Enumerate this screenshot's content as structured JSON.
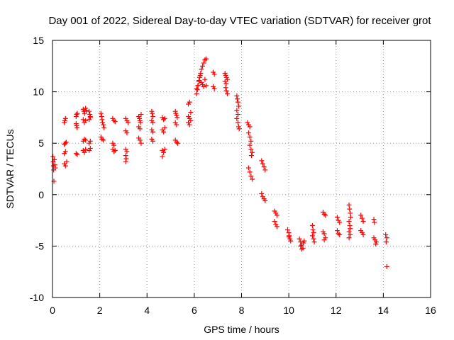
{
  "chart_data": {
    "type": "scatter",
    "title": "Day 001 of 2022, Sidereal Day-to-day VTEC variation (SDTVAR) for receiver grot",
    "xlabel": "GPS time / hours",
    "ylabel": "SDTVAR / TECUs",
    "xlim": [
      0,
      16
    ],
    "ylim": [
      -10,
      15
    ],
    "xticks": [
      "0",
      "2",
      "4",
      "6",
      "8",
      "10",
      "12",
      "14",
      "16"
    ],
    "yticks": [
      "15",
      "10",
      "5",
      "0",
      "-5",
      "-10"
    ],
    "grid": true,
    "marker": "plus",
    "color": "#ff0000",
    "series": [
      {
        "name": "SDTVAR",
        "points": [
          [
            0.02,
            3.7
          ],
          [
            0.03,
            3.2
          ],
          [
            0.04,
            2.8
          ],
          [
            0.05,
            2.4
          ],
          [
            0.06,
            1.3
          ],
          [
            0.08,
            3.4
          ],
          [
            0.1,
            2.9
          ],
          [
            0.12,
            2.6
          ],
          [
            0.5,
            7.0
          ],
          [
            0.52,
            7.2
          ],
          [
            0.55,
            7.4
          ],
          [
            0.5,
            4.9
          ],
          [
            0.54,
            5.0
          ],
          [
            0.58,
            5.1
          ],
          [
            0.5,
            4.0
          ],
          [
            0.55,
            4.2
          ],
          [
            0.5,
            3.0
          ],
          [
            0.55,
            2.8
          ],
          [
            0.6,
            3.2
          ],
          [
            1.0,
            7.6
          ],
          [
            1.02,
            7.8
          ],
          [
            1.05,
            7.9
          ],
          [
            1.0,
            6.9
          ],
          [
            1.02,
            6.7
          ],
          [
            1.04,
            6.5
          ],
          [
            1.0,
            4.0
          ],
          [
            1.05,
            3.9
          ],
          [
            1.3,
            8.3
          ],
          [
            1.33,
            8.1
          ],
          [
            1.36,
            7.9
          ],
          [
            1.4,
            8.4
          ],
          [
            1.43,
            8.2
          ],
          [
            1.3,
            7.3
          ],
          [
            1.35,
            7.0
          ],
          [
            1.4,
            7.2
          ],
          [
            1.3,
            5.2
          ],
          [
            1.35,
            5.4
          ],
          [
            1.4,
            5.3
          ],
          [
            1.3,
            4.3
          ],
          [
            1.35,
            4.1
          ],
          [
            1.4,
            4.4
          ],
          [
            1.55,
            8.1
          ],
          [
            1.58,
            7.8
          ],
          [
            1.6,
            7.6
          ],
          [
            1.55,
            7.3
          ],
          [
            1.6,
            7.5
          ],
          [
            1.55,
            5.0
          ],
          [
            1.6,
            5.2
          ],
          [
            1.55,
            4.3
          ],
          [
            1.6,
            4.5
          ],
          [
            2.05,
            7.9
          ],
          [
            2.08,
            7.6
          ],
          [
            2.1,
            7.3
          ],
          [
            2.12,
            7.0
          ],
          [
            2.15,
            6.8
          ],
          [
            2.18,
            6.5
          ],
          [
            2.05,
            5.6
          ],
          [
            2.1,
            5.4
          ],
          [
            2.15,
            5.3
          ],
          [
            2.55,
            7.4
          ],
          [
            2.6,
            7.2
          ],
          [
            2.65,
            7.1
          ],
          [
            2.55,
            5.0
          ],
          [
            2.6,
            4.8
          ],
          [
            2.55,
            4.4
          ],
          [
            2.6,
            4.2
          ],
          [
            2.65,
            4.3
          ],
          [
            3.1,
            7.4
          ],
          [
            3.15,
            7.2
          ],
          [
            3.2,
            7.0
          ],
          [
            3.1,
            6.2
          ],
          [
            3.15,
            6.0
          ],
          [
            3.1,
            4.4
          ],
          [
            3.15,
            4.2
          ],
          [
            3.1,
            3.8
          ],
          [
            3.12,
            3.5
          ],
          [
            3.1,
            3.2
          ],
          [
            3.65,
            7.6
          ],
          [
            3.68,
            7.4
          ],
          [
            3.7,
            7.2
          ],
          [
            3.72,
            7.0
          ],
          [
            3.75,
            7.8
          ],
          [
            3.65,
            6.6
          ],
          [
            3.7,
            6.4
          ],
          [
            3.65,
            5.5
          ],
          [
            3.7,
            5.3
          ],
          [
            3.75,
            5.0
          ],
          [
            4.2,
            8.1
          ],
          [
            4.22,
            7.9
          ],
          [
            4.25,
            7.6
          ],
          [
            4.2,
            7.2
          ],
          [
            4.25,
            7.0
          ],
          [
            4.2,
            6.3
          ],
          [
            4.25,
            6.1
          ],
          [
            4.2,
            5.4
          ],
          [
            4.25,
            5.2
          ],
          [
            4.65,
            7.5
          ],
          [
            4.7,
            7.3
          ],
          [
            4.75,
            7.4
          ],
          [
            4.65,
            6.3
          ],
          [
            4.7,
            6.1
          ],
          [
            4.75,
            6.5
          ],
          [
            4.65,
            4.3
          ],
          [
            4.7,
            4.1
          ],
          [
            4.75,
            4.4
          ],
          [
            4.65,
            3.7
          ],
          [
            5.2,
            8.1
          ],
          [
            5.22,
            7.9
          ],
          [
            5.25,
            7.7
          ],
          [
            5.28,
            7.5
          ],
          [
            5.2,
            7.0
          ],
          [
            5.25,
            6.8
          ],
          [
            5.2,
            5.3
          ],
          [
            5.25,
            5.1
          ],
          [
            5.3,
            5.0
          ],
          [
            5.75,
            8.8
          ],
          [
            5.8,
            9.0
          ],
          [
            5.75,
            7.6
          ],
          [
            5.8,
            7.4
          ],
          [
            5.85,
            7.2
          ],
          [
            5.75,
            7.0
          ],
          [
            5.8,
            6.8
          ],
          [
            5.85,
            8.0
          ],
          [
            6.1,
            9.8
          ],
          [
            6.13,
            10.2
          ],
          [
            6.16,
            10.6
          ],
          [
            6.2,
            11.0
          ],
          [
            6.23,
            11.4
          ],
          [
            6.27,
            11.8
          ],
          [
            6.3,
            12.2
          ],
          [
            6.35,
            12.5
          ],
          [
            6.4,
            12.8
          ],
          [
            6.45,
            13.1
          ],
          [
            6.5,
            13.2
          ],
          [
            6.1,
            10.3
          ],
          [
            6.15,
            10.6
          ],
          [
            6.2,
            11.1
          ],
          [
            6.25,
            11.6
          ],
          [
            6.3,
            10.9
          ],
          [
            6.35,
            10.7
          ],
          [
            6.4,
            10.5
          ],
          [
            6.45,
            11.2
          ],
          [
            6.5,
            10.6
          ],
          [
            6.8,
            11.9
          ],
          [
            6.85,
            11.7
          ],
          [
            6.8,
            10.5
          ],
          [
            6.85,
            10.3
          ],
          [
            7.3,
            11.8
          ],
          [
            7.33,
            11.6
          ],
          [
            7.36,
            11.4
          ],
          [
            7.3,
            11.0
          ],
          [
            7.35,
            10.8
          ],
          [
            7.4,
            11.2
          ],
          [
            7.33,
            10.4
          ],
          [
            7.36,
            10.1
          ],
          [
            7.4,
            9.8
          ],
          [
            7.8,
            9.6
          ],
          [
            7.82,
            9.3
          ],
          [
            7.85,
            9.0
          ],
          [
            7.88,
            8.6
          ],
          [
            7.8,
            8.2
          ],
          [
            7.85,
            7.8
          ],
          [
            7.8,
            7.4
          ],
          [
            7.85,
            7.0
          ],
          [
            7.88,
            6.6
          ],
          [
            7.9,
            6.4
          ],
          [
            8.25,
            7.0
          ],
          [
            8.3,
            6.8
          ],
          [
            8.35,
            6.6
          ],
          [
            8.3,
            6.0
          ],
          [
            8.35,
            5.6
          ],
          [
            8.4,
            5.2
          ],
          [
            8.35,
            4.8
          ],
          [
            8.4,
            4.4
          ],
          [
            8.45,
            4.1
          ],
          [
            8.42,
            3.8
          ],
          [
            8.3,
            2.6
          ],
          [
            8.35,
            2.2
          ],
          [
            8.4,
            1.8
          ],
          [
            8.45,
            1.5
          ],
          [
            8.85,
            3.3
          ],
          [
            8.9,
            3.0
          ],
          [
            8.95,
            2.7
          ],
          [
            9.0,
            2.4
          ],
          [
            8.85,
            0.1
          ],
          [
            8.9,
            -0.2
          ],
          [
            8.95,
            -0.4
          ],
          [
            9.0,
            -0.6
          ],
          [
            9.4,
            -1.6
          ],
          [
            9.45,
            -1.8
          ],
          [
            9.5,
            -2.0
          ],
          [
            9.4,
            -2.6
          ],
          [
            9.45,
            -2.9
          ],
          [
            9.5,
            -3.1
          ],
          [
            9.95,
            -3.4
          ],
          [
            10.0,
            -3.7
          ],
          [
            10.02,
            -4.0
          ],
          [
            10.05,
            -4.3
          ],
          [
            10.08,
            -4.5
          ],
          [
            10.0,
            -4.1
          ],
          [
            10.45,
            -4.3
          ],
          [
            10.5,
            -4.6
          ],
          [
            10.55,
            -4.9
          ],
          [
            10.6,
            -5.2
          ],
          [
            10.62,
            -4.7
          ],
          [
            10.65,
            -4.5
          ],
          [
            10.5,
            -5.0
          ],
          [
            10.55,
            -5.3
          ],
          [
            11.0,
            -3.0
          ],
          [
            11.02,
            -3.4
          ],
          [
            11.05,
            -3.7
          ],
          [
            11.0,
            -4.0
          ],
          [
            11.05,
            -4.3
          ],
          [
            11.08,
            -4.6
          ],
          [
            11.45,
            -1.7
          ],
          [
            11.5,
            -1.9
          ],
          [
            11.55,
            -2.0
          ],
          [
            11.45,
            -3.6
          ],
          [
            11.5,
            -3.8
          ],
          [
            11.55,
            -4.2
          ],
          [
            11.5,
            -4.4
          ],
          [
            12.05,
            -2.2
          ],
          [
            12.1,
            -2.5
          ],
          [
            12.15,
            -2.7
          ],
          [
            12.05,
            -3.5
          ],
          [
            12.1,
            -3.8
          ],
          [
            12.15,
            -3.9
          ],
          [
            12.55,
            -1.0
          ],
          [
            12.57,
            -1.4
          ],
          [
            12.6,
            -1.8
          ],
          [
            12.62,
            -2.2
          ],
          [
            12.55,
            -2.6
          ],
          [
            12.58,
            -3.0
          ],
          [
            12.6,
            -3.3
          ],
          [
            12.55,
            -3.6
          ],
          [
            12.6,
            -3.9
          ],
          [
            12.55,
            -4.2
          ],
          [
            13.05,
            -2.0
          ],
          [
            13.1,
            -2.3
          ],
          [
            13.15,
            -2.6
          ],
          [
            13.05,
            -3.5
          ],
          [
            13.1,
            -3.7
          ],
          [
            13.15,
            -3.9
          ],
          [
            13.6,
            -2.4
          ],
          [
            13.62,
            -2.7
          ],
          [
            13.6,
            -4.2
          ],
          [
            13.65,
            -4.4
          ],
          [
            13.7,
            -4.6
          ],
          [
            13.68,
            -4.8
          ],
          [
            14.1,
            -3.9
          ],
          [
            14.15,
            -4.2
          ],
          [
            14.12,
            -4.6
          ],
          [
            14.15,
            -7.0
          ]
        ]
      }
    ]
  }
}
